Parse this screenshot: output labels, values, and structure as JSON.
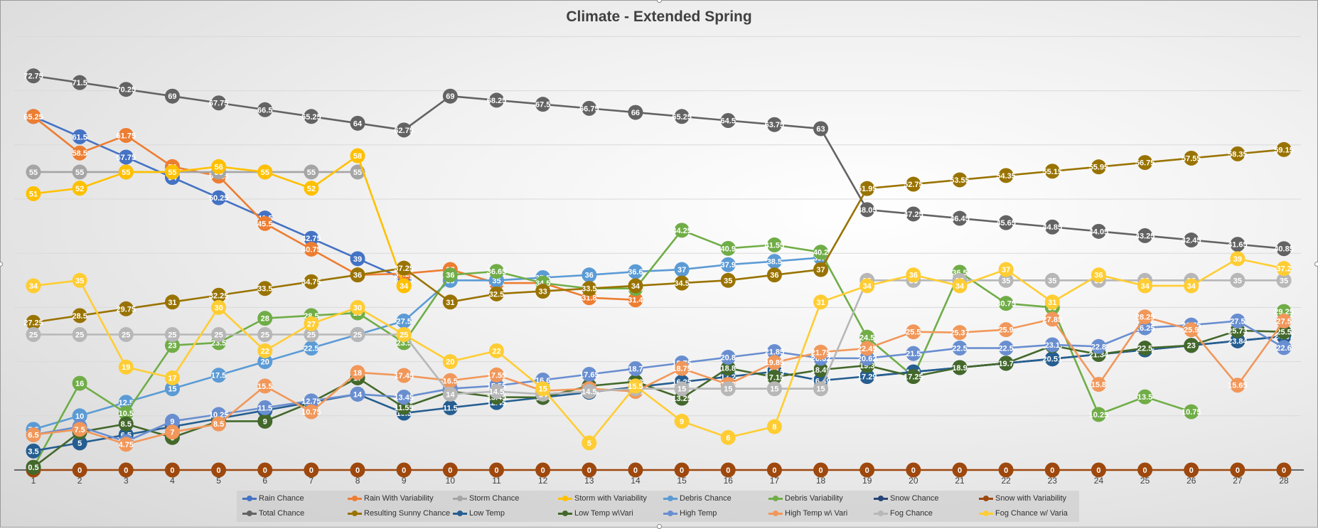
{
  "chart_data": {
    "type": "line",
    "title": "Climate - Extended  Spring",
    "x": [
      1,
      2,
      3,
      4,
      5,
      6,
      7,
      8,
      9,
      10,
      11,
      12,
      13,
      14,
      15,
      16,
      17,
      18,
      19,
      20,
      21,
      22,
      23,
      24,
      25,
      26,
      27,
      28
    ],
    "ylim": [
      0,
      80
    ],
    "grid": true,
    "legend_position": "bottom",
    "data_labels": true,
    "series": [
      {
        "name": "Rain Chance",
        "color": "#4472c4",
        "values": [
          65.25,
          61.5,
          57.75,
          54,
          50.25,
          46.5,
          42.75,
          39,
          35.25,
          null,
          null,
          null,
          null,
          null,
          null,
          null,
          null,
          null,
          null,
          null,
          null,
          null,
          null,
          null,
          null,
          null,
          null,
          null
        ]
      },
      {
        "name": "Rain With Variability",
        "color": "#ed7d31",
        "values": [
          65.25,
          58.5,
          61.75,
          56,
          54.25,
          45.5,
          40.75,
          36,
          36.25,
          37,
          34.5,
          34.5,
          31.8,
          31.4,
          null,
          null,
          null,
          null,
          null,
          null,
          null,
          null,
          null,
          null,
          null,
          null,
          null,
          null
        ]
      },
      {
        "name": "Storm Chance",
        "color": "#a5a5a5",
        "values": [
          55,
          55,
          55,
          55,
          55,
          55,
          55,
          55,
          null,
          null,
          null,
          null,
          null,
          null,
          null,
          null,
          null,
          null,
          null,
          null,
          null,
          null,
          null,
          null,
          null,
          null,
          null,
          null
        ]
      },
      {
        "name": "Storm with Variability",
        "color": "#ffc000",
        "values": [
          51,
          52,
          55,
          55,
          56,
          55,
          52,
          58,
          34,
          null,
          null,
          null,
          null,
          null,
          null,
          null,
          null,
          null,
          null,
          null,
          null,
          null,
          null,
          null,
          null,
          null,
          null,
          null
        ]
      },
      {
        "name": "Debris Chance",
        "color": "#5b9bd5",
        "values": [
          7.5,
          10,
          12.5,
          15,
          17.5,
          20,
          22.5,
          25,
          27.5,
          35,
          35,
          35.5,
          36,
          36.6,
          37,
          37.9,
          38.5,
          39.2,
          null,
          null,
          null,
          null,
          null,
          null,
          null,
          null,
          null,
          null
        ]
      },
      {
        "name": "Debris Variability",
        "color": "#70ad47",
        "values": [
          0.5,
          16,
          10.5,
          23,
          23.5,
          28,
          28.5,
          29,
          23.5,
          36,
          36.65,
          34.5,
          33.5,
          33.5,
          44.25,
          40.9,
          41.55,
          40.2,
          24.5,
          17.25,
          36.5,
          30.75,
          30,
          10.25,
          13.5,
          10.75,
          null,
          29.25
        ]
      },
      {
        "name": "Snow Chance",
        "color": "#264478",
        "values": [
          null,
          null,
          null,
          null,
          null,
          null,
          null,
          null,
          null,
          null,
          null,
          null,
          null,
          null,
          null,
          null,
          null,
          null,
          17.25,
          18.1,
          18.9,
          19.7,
          20.51,
          21.34,
          22.17,
          23,
          23.84,
          24.67
        ]
      },
      {
        "name": "Snow with Variability",
        "color": "#9e480e",
        "values": [
          0,
          0,
          0,
          0,
          0,
          0,
          0,
          0,
          0,
          0,
          0,
          0,
          0,
          0,
          0,
          0,
          0,
          0,
          0,
          0,
          0,
          0,
          0,
          0,
          0,
          0,
          0,
          0
        ]
      },
      {
        "name": "Total Chance",
        "color": "#636363",
        "values": [
          72.75,
          71.5,
          70.25,
          69,
          67.75,
          66.5,
          65.25,
          64,
          62.75,
          69,
          68.25,
          67.5,
          66.75,
          66,
          65.25,
          64.5,
          63.75,
          63,
          48.05,
          47.25,
          46.45,
          45.65,
          44.85,
          44.05,
          43.25,
          42.45,
          41.65,
          40.85
        ]
      },
      {
        "name": "Resulting Sunny Chance",
        "color": "#997300",
        "values": [
          27.25,
          28.5,
          29.75,
          31,
          32.25,
          33.5,
          34.75,
          36,
          37.25,
          31,
          32.5,
          33,
          33.5,
          34,
          34.5,
          35,
          36,
          37,
          51.95,
          52.75,
          53.55,
          54.35,
          55.15,
          55.95,
          56.75,
          57.55,
          58.35,
          59.15
        ]
      },
      {
        "name": "Low Temp",
        "color": "#255e91",
        "values": [
          3.5,
          5,
          6.5,
          8,
          9.5,
          11,
          12.5,
          14,
          10.5,
          11.5,
          12.45,
          13.4,
          14.35,
          15.3,
          16.25,
          17.2,
          18.15,
          16.49,
          17.29,
          18.1,
          18.9,
          19.7,
          20.51,
          21.34,
          22.17,
          23,
          23.84,
          24.67
        ]
      },
      {
        "name": "Low Temp w\\Vari",
        "color": "#43682b",
        "values": [
          0.5,
          7,
          8.5,
          6,
          9,
          9,
          12.5,
          17,
          11.55,
          14.5,
          13.45,
          13.4,
          15.5,
          16.3,
          13.25,
          18.8,
          17.15,
          18.49,
          19.3,
          17.25,
          18.9,
          19.7,
          22.95,
          21.34,
          22.5,
          23,
          25.73,
          25.5
        ]
      },
      {
        "name": "High Temp",
        "color": "#698ed0",
        "values": [
          6.5,
          8,
          5.25,
          9,
          10.25,
          11.5,
          12.75,
          14,
          13.45,
          15,
          15.55,
          16.6,
          17.65,
          18.7,
          19.75,
          20.8,
          21.85,
          20.62,
          20.62,
          21.5,
          22.5,
          22.5,
          23.1,
          22.8,
          26.25,
          26.75,
          27.5,
          22.6
        ]
      },
      {
        "name": "High Temp w\\ Vari",
        "color": "#f1975a",
        "values": [
          6.5,
          7.5,
          4.75,
          7,
          8.5,
          15.5,
          10.75,
          18,
          17.45,
          16.5,
          17.55,
          14.6,
          15,
          14.5,
          18.75,
          15.8,
          19.85,
          21.75,
          22.45,
          25.5,
          25.37,
          25.9,
          27.85,
          15.8,
          28.25,
          25.9,
          15.65,
          27.5
        ]
      },
      {
        "name": "Fog Chance",
        "color": "#b7b7b7",
        "values": [
          25,
          25,
          25,
          25,
          25,
          25,
          25,
          25,
          25,
          14,
          14.5,
          14,
          14.5,
          15,
          15,
          15,
          15,
          15,
          35,
          35,
          35,
          35,
          35,
          35,
          35,
          35,
          35,
          35
        ]
      },
      {
        "name": "Fog Chance w/ Varia",
        "color": "#ffcd33",
        "values": [
          34,
          35,
          19,
          17,
          30,
          22,
          27,
          30,
          25,
          20,
          22,
          15,
          5,
          15.5,
          9,
          6,
          8,
          31,
          34,
          36,
          34,
          37,
          31,
          36,
          34,
          34,
          39,
          37.2
        ]
      }
    ],
    "extra_labels": [
      "19.75",
      "24.8",
      "20.5",
      "21.5",
      "22.7",
      "33.55",
      "30.625",
      "18.25",
      "19.75",
      "29.75",
      "24.8",
      "26.25",
      "15.65",
      "36.25",
      "35.5",
      "34.6"
    ]
  },
  "legend": {
    "items": [
      "Rain Chance",
      "Rain With Variability",
      "Storm Chance",
      "Storm with Variability",
      "Debris Chance",
      "Debris Variability",
      "Snow Chance",
      "Snow with Variability",
      "Total Chance",
      "Resulting Sunny Chance",
      "Low Temp",
      "Low Temp w\\Vari",
      "High Temp",
      "High Temp w\\ Vari",
      "Fog Chance",
      "Fog Chance w/ Varia"
    ]
  }
}
